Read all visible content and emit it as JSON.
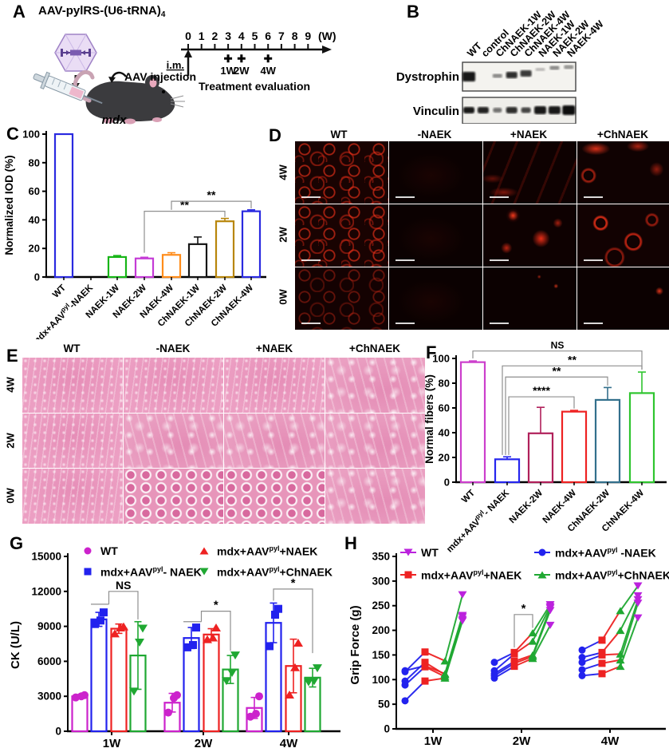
{
  "figure": {
    "a": {
      "label": "A",
      "title_main": "AAV-pylRS-(U6-tRNA)",
      "title_sub": "4",
      "mouse": "mdx",
      "route": "i.m.",
      "injection": "AAV injection",
      "eval_caption": "Treatment evaluation",
      "timeline_unit": "(W)",
      "timeline_ticks": [
        "0",
        "1",
        "2",
        "3",
        "4",
        "5",
        "6",
        "7",
        "8",
        "9"
      ],
      "eval_marks": [
        {
          "week": 3,
          "label": "1W"
        },
        {
          "week": 4,
          "label": "2W"
        },
        {
          "week": 6,
          "label": "4W"
        }
      ]
    },
    "b": {
      "label": "B",
      "lanes": [
        "WT",
        "control",
        "ChNAEK-1W",
        "ChNAEK-2W",
        "ChNAEK-4W",
        "NAEK-1W",
        "NAEK-2W",
        "NAEK-4W"
      ],
      "targets": [
        "Dystrophin",
        "Vinculin"
      ],
      "dystrophin_bands": {
        "intensity": [
          0.95,
          0,
          0.45,
          0.85,
          0.8,
          0.25,
          0.45,
          0.4
        ],
        "width": [
          16,
          0,
          12,
          14,
          14,
          12,
          12,
          12
        ],
        "height": [
          12,
          0,
          5,
          8,
          8,
          4,
          5,
          5
        ],
        "dy": [
          0,
          0,
          -1,
          -2,
          -4,
          -9,
          -11,
          -12
        ]
      },
      "vinculin_bands": {
        "intensity": [
          0.95,
          0.9,
          0.55,
          0.85,
          0.75,
          0.95,
          0.95,
          1
        ],
        "width": [
          14,
          14,
          11,
          14,
          12,
          15,
          15,
          16
        ],
        "height": [
          8,
          8,
          6,
          8,
          7,
          10,
          10,
          12
        ]
      }
    },
    "c": {
      "label": "C"
    },
    "d": {
      "label": "D",
      "columns": [
        "WT",
        "-NAEK",
        "+NAEK",
        "+ChNAEK"
      ],
      "rows": [
        "4W",
        "2W",
        "0W"
      ],
      "patterns": [
        [
          "mesh",
          "dark",
          "streaks",
          "patches"
        ],
        [
          "mesh",
          "dark",
          "blobs",
          "rings"
        ],
        [
          "meshdim",
          "dark",
          "dots",
          "dot"
        ]
      ]
    },
    "e": {
      "label": "E",
      "columns": [
        "WT",
        "-NAEK",
        "+NAEK",
        "+ChNAEK"
      ],
      "rows": [
        "4W",
        "2W",
        "0W"
      ],
      "patterns": [
        [
          "hefine",
          "hefine",
          "hefine",
          "hecoarse"
        ],
        [
          "hefine",
          "hecoarse",
          "hecoarse",
          "hecoarse"
        ],
        [
          "hefine",
          "heround",
          "heround",
          "hecoarse"
        ]
      ]
    },
    "f": {
      "label": "F"
    },
    "g": {
      "label": "G"
    },
    "h": {
      "label": "H"
    }
  },
  "chart_data": [
    {
      "id": "chart-c",
      "type": "bar",
      "categories": [
        "WT",
        "mdx+AAV^pyl^-NAEK",
        "NAEK-1W",
        "NAEK-2W",
        "NAEK-4W",
        "ChNAEK-1W",
        "ChNAEK-2W",
        "ChNAEK-4W"
      ],
      "values": [
        100,
        0,
        14,
        13,
        15.5,
        23,
        39,
        46
      ],
      "errors": [
        0,
        0,
        1,
        0.8,
        1.5,
        5,
        2,
        1
      ],
      "bar_colors": [
        "#2a2ae0",
        "#2a2ae0",
        "#17b517",
        "#c43bd6",
        "#ff8c1a",
        "#151515",
        "#b8860b",
        "#2a2ae0"
      ],
      "ylabel": "Normalized IOD (%)",
      "ylim": [
        0,
        100
      ],
      "yticks": [
        0,
        20,
        40,
        60,
        80,
        100
      ],
      "grid": false,
      "significance": [
        {
          "i1": 3,
          "i2": 6,
          "y": 46,
          "end1": 17,
          "end2": 42,
          "label": "**"
        },
        {
          "i1": 4,
          "i2": 7,
          "y": 53,
          "end1": 47,
          "end2": 48,
          "label": "**"
        }
      ]
    },
    {
      "id": "chart-f",
      "type": "bar",
      "categories": [
        "WT",
        "mdx+AAV^pyl^- NAEK",
        "NAEK-2W",
        "NAEK-4W",
        "ChNAEK-2W",
        "ChNAEK-4W"
      ],
      "values": [
        97,
        18.5,
        39.5,
        57,
        66.5,
        72
      ],
      "errors": [
        1,
        2,
        21,
        1,
        10,
        17
      ],
      "bar_colors": [
        "#cc3fcc",
        "#2626ee",
        "#b0205a",
        "#ee2222",
        "#33708c",
        "#2fc52f"
      ],
      "ylabel": "Normal fibers (%)",
      "ylim": [
        0,
        100
      ],
      "yticks": [
        0,
        20,
        40,
        60,
        80,
        100
      ],
      "grid": false,
      "significance": [
        {
          "i1": 0,
          "i2": 5,
          "y": 106,
          "end1": 100,
          "end2": 91,
          "label": "NS"
        },
        {
          "i1": 1,
          "i2": 5,
          "y": 94,
          "end1": 22,
          "end2": 91,
          "label": "**",
          "x1off": -6
        },
        {
          "i1": 1,
          "i2": 4,
          "y": 85,
          "end1": 22,
          "end2": 78,
          "label": "**",
          "x1off": -2
        },
        {
          "i1": 1,
          "i2": 3,
          "y": 69,
          "end1": 22,
          "end2": 59.5,
          "label": "****",
          "x1off": 2
        }
      ]
    },
    {
      "id": "chart-g",
      "type": "grouped-bar-scatter",
      "groups": [
        "1W",
        "2W",
        "4W"
      ],
      "ylabel": "CK (U/L)",
      "ylim": [
        0,
        15000
      ],
      "yticks": [
        0,
        3000,
        6000,
        9000,
        12000,
        15000
      ],
      "series": [
        {
          "name": "WT",
          "marker": "circle",
          "color": "#cc22cc",
          "means": [
            3000,
            2450,
            2000
          ],
          "errors": [
            150,
            800,
            900
          ],
          "points": [
            [
              2900,
              3000,
              3100
            ],
            [
              1600,
              2850,
              3100
            ],
            [
              1250,
              1500,
              3000
            ]
          ]
        },
        {
          "name": "mdx+AAV^pyl^- NAEK",
          "marker": "square",
          "color": "#2222ee",
          "means": [
            9600,
            8000,
            9300
          ],
          "errors": [
            600,
            900,
            1700
          ],
          "points": [
            [
              9200,
              9500,
              10200
            ],
            [
              7200,
              7400,
              8900
            ],
            [
              7300,
              10000,
              10500
            ]
          ]
        },
        {
          "name": "mdx+AAV^pyl^+NAEK",
          "marker": "triangle-up",
          "color": "#ee2222",
          "means": [
            8800,
            8300,
            5600
          ],
          "errors": [
            400,
            500,
            2300
          ],
          "points": [
            [
              8400,
              8900,
              9000
            ],
            [
              7900,
              8050,
              8900
            ],
            [
              3150,
              5500,
              7600
            ]
          ]
        },
        {
          "name": "mdx+AAV^pyl^+ChNAEK",
          "marker": "triangle-down",
          "color": "#1fa832",
          "means": [
            6500,
            5300,
            4600
          ],
          "errors": [
            2900,
            1200,
            800
          ],
          "points": [
            [
              3400,
              7600,
              8800
            ],
            [
              4300,
              5000,
              6500
            ],
            [
              4200,
              4300,
              5400
            ]
          ]
        }
      ],
      "significance": [
        {
          "group": 0,
          "s1": 1,
          "s2": 3,
          "y": 12000,
          "end1": 10900,
          "end2": 9600,
          "label": "NS",
          "fork": true
        },
        {
          "group": 1,
          "s1": 1,
          "s2": 3,
          "y": 10300,
          "end1": 9400,
          "end2": 6900,
          "label": "*",
          "fork": true
        },
        {
          "group": 2,
          "s1": 1,
          "s2": 3,
          "y": 12200,
          "end1": 11200,
          "end2": 6700,
          "label": "*"
        }
      ]
    },
    {
      "id": "chart-h",
      "type": "paired-lines",
      "groups": [
        "1W",
        "2W",
        "4W"
      ],
      "ylabel": "Grip Force (g)",
      "ylim": [
        0,
        350
      ],
      "yticks": [
        0,
        50,
        100,
        150,
        200,
        250,
        300,
        350
      ],
      "series": [
        {
          "name": "WT",
          "marker": "triangle-down",
          "color": "#bb22dd"
        },
        {
          "name": "mdx+AAV^pyl^ -NAEK",
          "marker": "circle",
          "color": "#2222ee"
        },
        {
          "name": "mdx+AAV^pyl^+NAEK",
          "marker": "square",
          "color": "#ee2222"
        },
        {
          "name": "mdx+AAV^pyl^+ChNAEK",
          "marker": "triangle-up",
          "color": "#1fa832"
        }
      ],
      "positions": [
        1,
        2,
        3,
        0
      ],
      "tracks": [
        [
          [
            57,
            97,
            103,
            219
          ],
          [
            89,
            126,
            106,
            222
          ],
          [
            97,
            135,
            110,
            227
          ],
          [
            116,
            156,
            138,
            272
          ],
          [
            118,
            128,
            112,
            230
          ]
        ],
        [
          [
            103,
            127,
            143,
            210
          ],
          [
            108,
            133,
            147,
            240
          ],
          [
            112,
            137,
            150,
            245
          ],
          [
            118,
            152,
            178,
            248
          ],
          [
            135,
            155,
            195,
            252
          ]
        ],
        [
          [
            108,
            112,
            127,
            225
          ],
          [
            120,
            133,
            140,
            255
          ],
          [
            135,
            150,
            152,
            262
          ],
          [
            145,
            155,
            200,
            270
          ],
          [
            160,
            180,
            240,
            290
          ]
        ]
      ],
      "significance": [
        {
          "group": 1,
          "p1": 1,
          "p2": 2,
          "y": 232,
          "end1": 165,
          "end2": 205,
          "label": "*"
        }
      ]
    }
  ]
}
